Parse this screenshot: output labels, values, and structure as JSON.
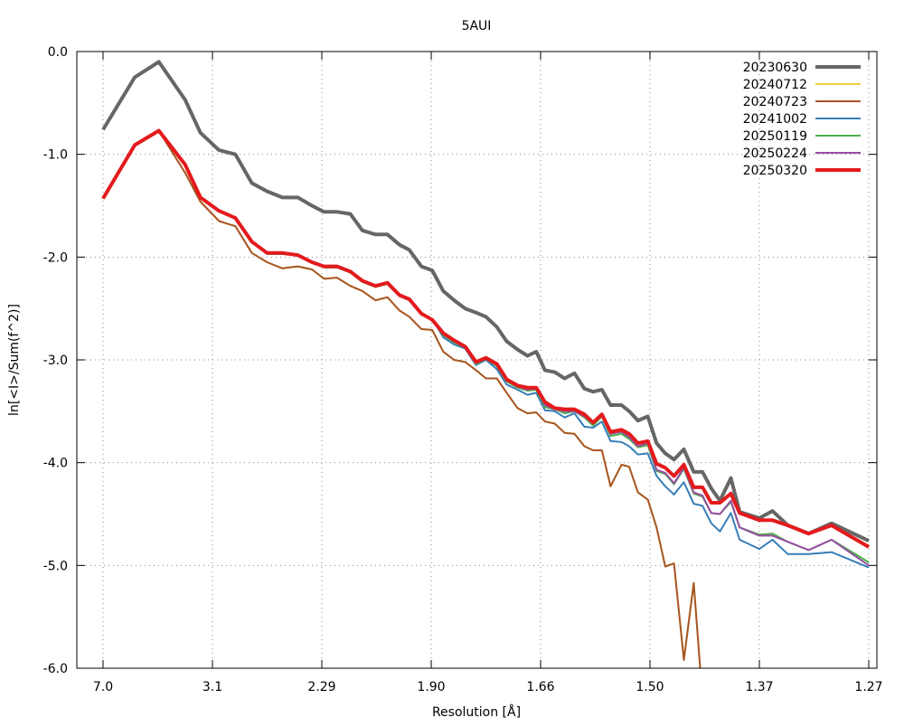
{
  "chart_data": {
    "type": "line",
    "title": "5AUI",
    "xlabel": "Resolution [Å]",
    "ylabel": "ln[<I>/Sum(f^2)]",
    "x_scale_note": "x positions given in tick-index units (evenly spaced resolution ticks)",
    "x_ticks": [
      "7.0",
      "3.1",
      "2.29",
      "1.90",
      "1.66",
      "1.50",
      "1.37",
      "1.27"
    ],
    "xlim": [
      -0.24,
      7.07
    ],
    "ylim": [
      -6.0,
      0.0
    ],
    "y_ticks": [
      "0.0",
      "-1.0",
      "-2.0",
      "-3.0",
      "-4.0",
      "-5.0",
      "-6.0"
    ],
    "y_tick_values": [
      0,
      -1,
      -2,
      -3,
      -4,
      -5,
      -6
    ],
    "grid": true,
    "legend_position": "top-right",
    "x": [
      0,
      0.29,
      0.51,
      0.75,
      0.89,
      1.06,
      1.21,
      1.36,
      1.5,
      1.64,
      1.78,
      1.91,
      2.02,
      2.14,
      2.26,
      2.37,
      2.49,
      2.6,
      2.71,
      2.8,
      2.91,
      3.01,
      3.11,
      3.21,
      3.31,
      3.41,
      3.5,
      3.6,
      3.69,
      3.79,
      3.88,
      3.96,
      4.04,
      4.13,
      4.22,
      4.31,
      4.4,
      4.48,
      4.56,
      4.64,
      4.74,
      4.81,
      4.89,
      4.98,
      5.06,
      5.14,
      5.22,
      5.31,
      5.4,
      5.48,
      5.56,
      5.64,
      5.74,
      5.82,
      6.0,
      6.12,
      6.26,
      6.45,
      6.66,
      7.0
    ],
    "series": [
      {
        "name": "20230630",
        "color": "#666666",
        "width": 4,
        "values": [
          -0.76,
          -0.25,
          -0.1,
          -0.47,
          -0.79,
          -0.96,
          -1.0,
          -1.28,
          -1.36,
          -1.42,
          -1.42,
          -1.5,
          -1.56,
          -1.56,
          -1.58,
          -1.74,
          -1.78,
          -1.78,
          -1.88,
          -1.93,
          -2.09,
          -2.13,
          -2.33,
          -2.42,
          -2.5,
          -2.54,
          -2.58,
          -2.68,
          -2.82,
          -2.9,
          -2.96,
          -2.92,
          -3.1,
          -3.12,
          -3.18,
          -3.13,
          -3.28,
          -3.31,
          -3.29,
          -3.44,
          -3.44,
          -3.5,
          -3.59,
          -3.55,
          -3.81,
          -3.91,
          -3.97,
          -3.87,
          -4.09,
          -4.09,
          -4.25,
          -4.37,
          -4.15,
          -4.48,
          -4.54,
          -4.47,
          -4.61,
          -4.69,
          -4.59,
          -4.76
        ]
      },
      {
        "name": "20240712",
        "color": "#f2d03a",
        "width": 2,
        "values": [
          -1.43,
          -0.91,
          -0.77,
          -1.18,
          -1.46,
          -1.65,
          -1.7,
          -1.96,
          -2.05,
          -2.11,
          -2.09,
          -2.12,
          -2.21,
          -2.2,
          -2.28,
          -2.33,
          -2.42,
          -2.39,
          -2.52,
          -2.58,
          -2.7,
          -2.71,
          -2.92,
          -3.0,
          -3.02,
          -3.1,
          -3.18,
          -3.18,
          -3.32,
          -3.47,
          -3.52,
          -3.51,
          -3.6,
          -3.62,
          -3.71,
          -3.72,
          -3.84,
          -3.88,
          -3.88,
          -4.23,
          -4.02,
          -4.04,
          -4.29,
          -4.36,
          -4.63,
          -5.01,
          -4.98,
          -5.92,
          -5.17,
          -6.3,
          null,
          null,
          null,
          null,
          null,
          null,
          null,
          null,
          null,
          null
        ]
      },
      {
        "name": "20240723",
        "color": "#a65628",
        "width": 2,
        "values": [
          -1.43,
          -0.91,
          -0.77,
          -1.18,
          -1.46,
          -1.65,
          -1.7,
          -1.96,
          -2.05,
          -2.11,
          -2.09,
          -2.12,
          -2.21,
          -2.2,
          -2.28,
          -2.33,
          -2.42,
          -2.39,
          -2.52,
          -2.58,
          -2.7,
          -2.71,
          -2.92,
          -3.0,
          -3.02,
          -3.1,
          -3.18,
          -3.18,
          -3.32,
          -3.47,
          -3.52,
          -3.51,
          -3.6,
          -3.62,
          -3.71,
          -3.72,
          -3.84,
          -3.88,
          -3.88,
          -4.23,
          -4.02,
          -4.04,
          -4.29,
          -4.36,
          -4.63,
          -5.01,
          -4.98,
          -5.92,
          -5.17,
          -6.3,
          null,
          null,
          null,
          null,
          null,
          null,
          null,
          null,
          null,
          null
        ]
      },
      {
        "name": "20241002",
        "color": "#377eb8",
        "width": 2,
        "values": [
          -1.43,
          -0.91,
          -0.77,
          -1.1,
          -1.42,
          -1.55,
          -1.62,
          -1.85,
          -1.97,
          -1.97,
          -1.98,
          -2.05,
          -2.1,
          -2.1,
          -2.15,
          -2.24,
          -2.29,
          -2.26,
          -2.38,
          -2.42,
          -2.56,
          -2.6,
          -2.78,
          -2.85,
          -2.89,
          -3.05,
          -3.0,
          -3.09,
          -3.24,
          -3.29,
          -3.34,
          -3.32,
          -3.49,
          -3.5,
          -3.56,
          -3.52,
          -3.65,
          -3.66,
          -3.6,
          -3.79,
          -3.8,
          -3.84,
          -3.92,
          -3.91,
          -4.13,
          -4.23,
          -4.31,
          -4.19,
          -4.4,
          -4.42,
          -4.59,
          -4.67,
          -4.49,
          -4.75,
          -4.84,
          -4.75,
          -4.89,
          -4.89,
          -4.87,
          -5.02
        ]
      },
      {
        "name": "20250119",
        "color": "#4daf4a",
        "width": 2,
        "values": [
          -1.43,
          -0.91,
          -0.77,
          -1.1,
          -1.42,
          -1.55,
          -1.62,
          -1.85,
          -1.97,
          -1.97,
          -1.98,
          -2.05,
          -2.1,
          -2.1,
          -2.15,
          -2.24,
          -2.29,
          -2.26,
          -2.38,
          -2.42,
          -2.56,
          -2.61,
          -2.76,
          -2.83,
          -2.88,
          -3.04,
          -2.99,
          -3.06,
          -3.21,
          -3.27,
          -3.3,
          -3.29,
          -3.46,
          -3.48,
          -3.52,
          -3.5,
          -3.56,
          -3.64,
          -3.55,
          -3.74,
          -3.72,
          -3.77,
          -3.85,
          -3.83,
          -4.08,
          -4.11,
          -4.21,
          -4.06,
          -4.3,
          -4.33,
          -4.49,
          -4.5,
          -4.38,
          -4.63,
          -4.7,
          -4.69,
          -4.77,
          -4.85,
          -4.75,
          -4.97
        ]
      },
      {
        "name": "20250224",
        "color": "#984ea3",
        "width": 2,
        "values": [
          -1.43,
          -0.91,
          -0.77,
          -1.1,
          -1.42,
          -1.55,
          -1.62,
          -1.85,
          -1.96,
          -1.96,
          -1.98,
          -2.05,
          -2.09,
          -2.09,
          -2.14,
          -2.23,
          -2.28,
          -2.25,
          -2.37,
          -2.41,
          -2.55,
          -2.61,
          -2.75,
          -2.82,
          -2.88,
          -3.03,
          -2.99,
          -3.05,
          -3.2,
          -3.26,
          -3.29,
          -3.28,
          -3.44,
          -3.48,
          -3.5,
          -3.5,
          -3.55,
          -3.62,
          -3.54,
          -3.72,
          -3.7,
          -3.75,
          -3.84,
          -3.81,
          -4.07,
          -4.1,
          -4.2,
          -4.05,
          -4.29,
          -4.32,
          -4.49,
          -4.5,
          -4.37,
          -4.63,
          -4.71,
          -4.71,
          -4.77,
          -4.85,
          -4.75,
          -5.0
        ]
      },
      {
        "name": "20250320",
        "color": "#e41a1c",
        "width": 4,
        "values": [
          -1.43,
          -0.91,
          -0.77,
          -1.1,
          -1.42,
          -1.55,
          -1.62,
          -1.85,
          -1.96,
          -1.96,
          -1.98,
          -2.05,
          -2.09,
          -2.09,
          -2.14,
          -2.23,
          -2.28,
          -2.25,
          -2.37,
          -2.41,
          -2.55,
          -2.61,
          -2.74,
          -2.81,
          -2.87,
          -3.02,
          -2.98,
          -3.04,
          -3.19,
          -3.25,
          -3.27,
          -3.27,
          -3.41,
          -3.47,
          -3.48,
          -3.48,
          -3.53,
          -3.61,
          -3.53,
          -3.7,
          -3.68,
          -3.72,
          -3.81,
          -3.79,
          -4.01,
          -4.05,
          -4.13,
          -4.02,
          -4.24,
          -4.24,
          -4.39,
          -4.39,
          -4.3,
          -4.49,
          -4.56,
          -4.56,
          -4.61,
          -4.69,
          -4.61,
          -4.82
        ]
      }
    ]
  }
}
